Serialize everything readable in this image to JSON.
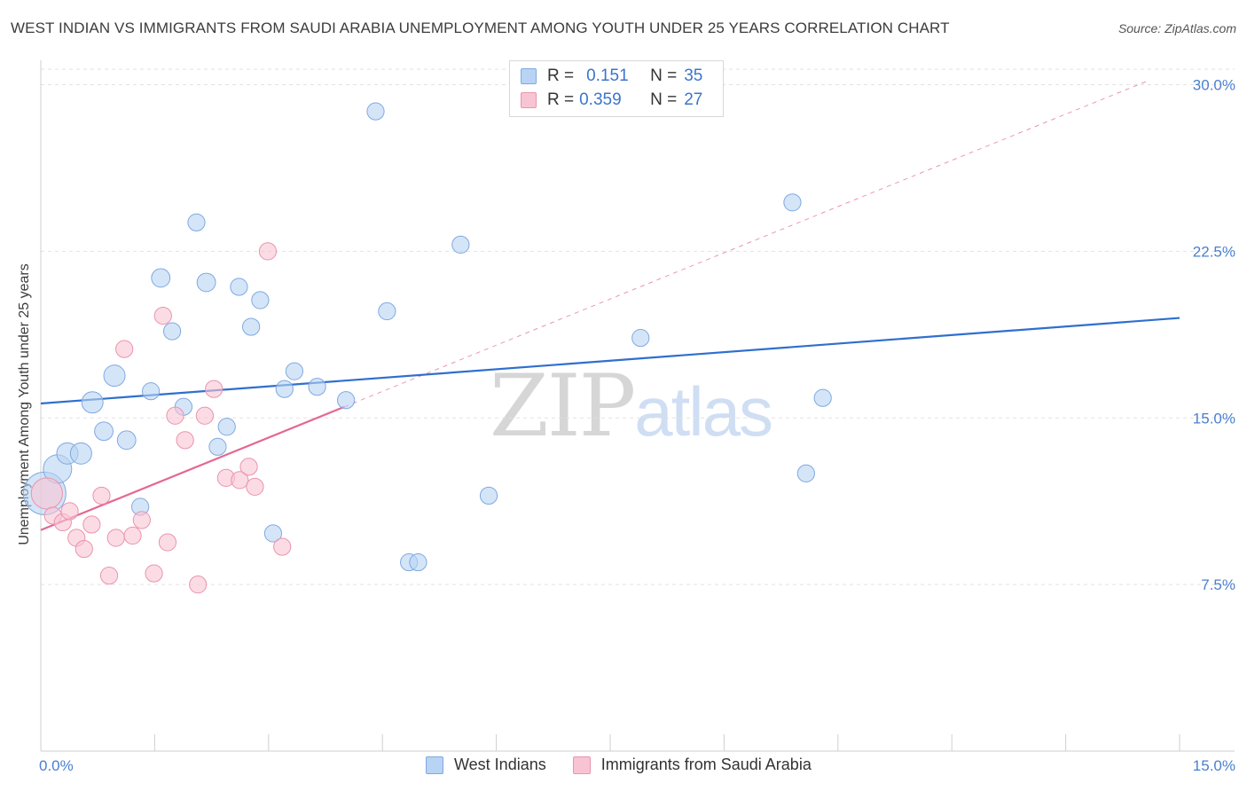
{
  "header": {
    "title": "WEST INDIAN VS IMMIGRANTS FROM SAUDI ARABIA UNEMPLOYMENT AMONG YOUTH UNDER 25 YEARS CORRELATION CHART",
    "source": "Source: ZipAtlas.com"
  },
  "watermark": {
    "part1": "ZIP",
    "part2": "atlas"
  },
  "legend": {
    "rows": [
      {
        "r_label": "R =",
        "r_value": "0.151",
        "n_label": "N =",
        "n_value": "35"
      },
      {
        "r_label": "R =",
        "r_value": "0.359",
        "n_label": "N =",
        "n_value": "27"
      }
    ],
    "series_labels": [
      "West Indians",
      "Immigrants from Saudi Arabia"
    ]
  },
  "colors": {
    "blue_fill": "#b9d3f4",
    "blue_stroke": "#7ea9e1",
    "blue_line": "#2f6fce",
    "pink_fill": "#f8c4d3",
    "pink_stroke": "#eb93ad",
    "pink_line": "#e46891",
    "tick_text": "#4a7fd0"
  },
  "chart_data": {
    "type": "scatter",
    "title": "WEST INDIAN VS IMMIGRANTS FROM SAUDI ARABIA UNEMPLOYMENT AMONG YOUTH UNDER 25 YEARS CORRELATION CHART",
    "xlabel": "",
    "ylabel": "Unemployment Among Youth under 25 years",
    "xlim": [
      0,
      15
    ],
    "ylim": [
      0,
      30.7
    ],
    "x_tick_labels": [
      "0.0%",
      "15.0%"
    ],
    "y_ticks": [
      7.5,
      15.0,
      22.5,
      30.0
    ],
    "y_tick_labels": [
      "7.5%",
      "15.0%",
      "22.5%",
      "30.0%"
    ],
    "grid": true,
    "legend_position": "top-center",
    "series": [
      {
        "name": "West Indians",
        "R": 0.151,
        "N": 35,
        "trend": {
          "x": [
            0,
            15
          ],
          "y": [
            15.65,
            19.5
          ],
          "style": "solid"
        },
        "points": [
          {
            "x": 0.05,
            "y": 11.6,
            "s": 3
          },
          {
            "x": 0.22,
            "y": 12.7,
            "s": 2
          },
          {
            "x": 0.35,
            "y": 13.4,
            "s": 1.5
          },
          {
            "x": 0.53,
            "y": 13.4,
            "s": 1.5
          },
          {
            "x": 0.68,
            "y": 15.7,
            "s": 1.5
          },
          {
            "x": 0.83,
            "y": 14.4,
            "s": 1.3
          },
          {
            "x": 0.97,
            "y": 16.9,
            "s": 1.5
          },
          {
            "x": 1.13,
            "y": 14.0,
            "s": 1.3
          },
          {
            "x": 1.31,
            "y": 11.0,
            "s": 1.2
          },
          {
            "x": 1.45,
            "y": 16.2,
            "s": 1.2
          },
          {
            "x": 1.58,
            "y": 21.3,
            "s": 1.3
          },
          {
            "x": 1.73,
            "y": 18.9,
            "s": 1.2
          },
          {
            "x": 1.88,
            "y": 15.5,
            "s": 1.2
          },
          {
            "x": 2.05,
            "y": 23.8,
            "s": 1.2
          },
          {
            "x": 2.18,
            "y": 21.1,
            "s": 1.3
          },
          {
            "x": 2.33,
            "y": 13.7,
            "s": 1.2
          },
          {
            "x": 2.45,
            "y": 14.6,
            "s": 1.2
          },
          {
            "x": 2.61,
            "y": 20.9,
            "s": 1.2
          },
          {
            "x": 2.77,
            "y": 19.1,
            "s": 1.2
          },
          {
            "x": 2.89,
            "y": 20.3,
            "s": 1.2
          },
          {
            "x": 3.06,
            "y": 9.8,
            "s": 1.2
          },
          {
            "x": 3.21,
            "y": 16.3,
            "s": 1.2
          },
          {
            "x": 3.34,
            "y": 17.1,
            "s": 1.2
          },
          {
            "x": 3.64,
            "y": 16.4,
            "s": 1.2
          },
          {
            "x": 4.02,
            "y": 15.8,
            "s": 1.2
          },
          {
            "x": 4.41,
            "y": 28.8,
            "s": 1.2
          },
          {
            "x": 4.56,
            "y": 19.8,
            "s": 1.2
          },
          {
            "x": 4.85,
            "y": 8.5,
            "s": 1.2
          },
          {
            "x": 4.97,
            "y": 8.5,
            "s": 1.2
          },
          {
            "x": 5.53,
            "y": 22.8,
            "s": 1.2
          },
          {
            "x": 5.9,
            "y": 11.5,
            "s": 1.2
          },
          {
            "x": 7.9,
            "y": 18.6,
            "s": 1.2
          },
          {
            "x": 9.9,
            "y": 24.7,
            "s": 1.2
          },
          {
            "x": 10.08,
            "y": 12.5,
            "s": 1.2
          },
          {
            "x": 10.3,
            "y": 15.9,
            "s": 1.2
          }
        ]
      },
      {
        "name": "Immigrants from Saudi Arabia",
        "R": 0.359,
        "N": 27,
        "trend_solid": {
          "x": [
            0,
            4.0
          ],
          "y": [
            9.95,
            15.5
          ],
          "style": "solid"
        },
        "trend_extended": {
          "x": [
            4.0,
            14.6
          ],
          "y": [
            15.5,
            30.2
          ],
          "style": "dashed"
        },
        "points": [
          {
            "x": 0.08,
            "y": 11.6,
            "s": 2.2
          },
          {
            "x": 0.16,
            "y": 10.6,
            "s": 1.2
          },
          {
            "x": 0.29,
            "y": 10.3,
            "s": 1.2
          },
          {
            "x": 0.38,
            "y": 10.8,
            "s": 1.2
          },
          {
            "x": 0.47,
            "y": 9.6,
            "s": 1.2
          },
          {
            "x": 0.57,
            "y": 9.1,
            "s": 1.2
          },
          {
            "x": 0.67,
            "y": 10.2,
            "s": 1.2
          },
          {
            "x": 0.8,
            "y": 11.5,
            "s": 1.2
          },
          {
            "x": 0.9,
            "y": 7.9,
            "s": 1.2
          },
          {
            "x": 0.99,
            "y": 9.6,
            "s": 1.2
          },
          {
            "x": 1.1,
            "y": 18.1,
            "s": 1.2
          },
          {
            "x": 1.21,
            "y": 9.7,
            "s": 1.2
          },
          {
            "x": 1.33,
            "y": 10.4,
            "s": 1.2
          },
          {
            "x": 1.49,
            "y": 8.0,
            "s": 1.2
          },
          {
            "x": 1.61,
            "y": 19.6,
            "s": 1.2
          },
          {
            "x": 1.67,
            "y": 9.4,
            "s": 1.2
          },
          {
            "x": 1.77,
            "y": 15.1,
            "s": 1.2
          },
          {
            "x": 1.9,
            "y": 14.0,
            "s": 1.2
          },
          {
            "x": 2.07,
            "y": 7.5,
            "s": 1.2
          },
          {
            "x": 2.16,
            "y": 15.1,
            "s": 1.2
          },
          {
            "x": 2.28,
            "y": 16.3,
            "s": 1.2
          },
          {
            "x": 2.44,
            "y": 12.3,
            "s": 1.2
          },
          {
            "x": 2.62,
            "y": 12.2,
            "s": 1.2
          },
          {
            "x": 2.74,
            "y": 12.8,
            "s": 1.2
          },
          {
            "x": 2.82,
            "y": 11.9,
            "s": 1.2
          },
          {
            "x": 2.99,
            "y": 22.5,
            "s": 1.2
          },
          {
            "x": 3.18,
            "y": 9.2,
            "s": 1.2
          }
        ]
      }
    ]
  }
}
